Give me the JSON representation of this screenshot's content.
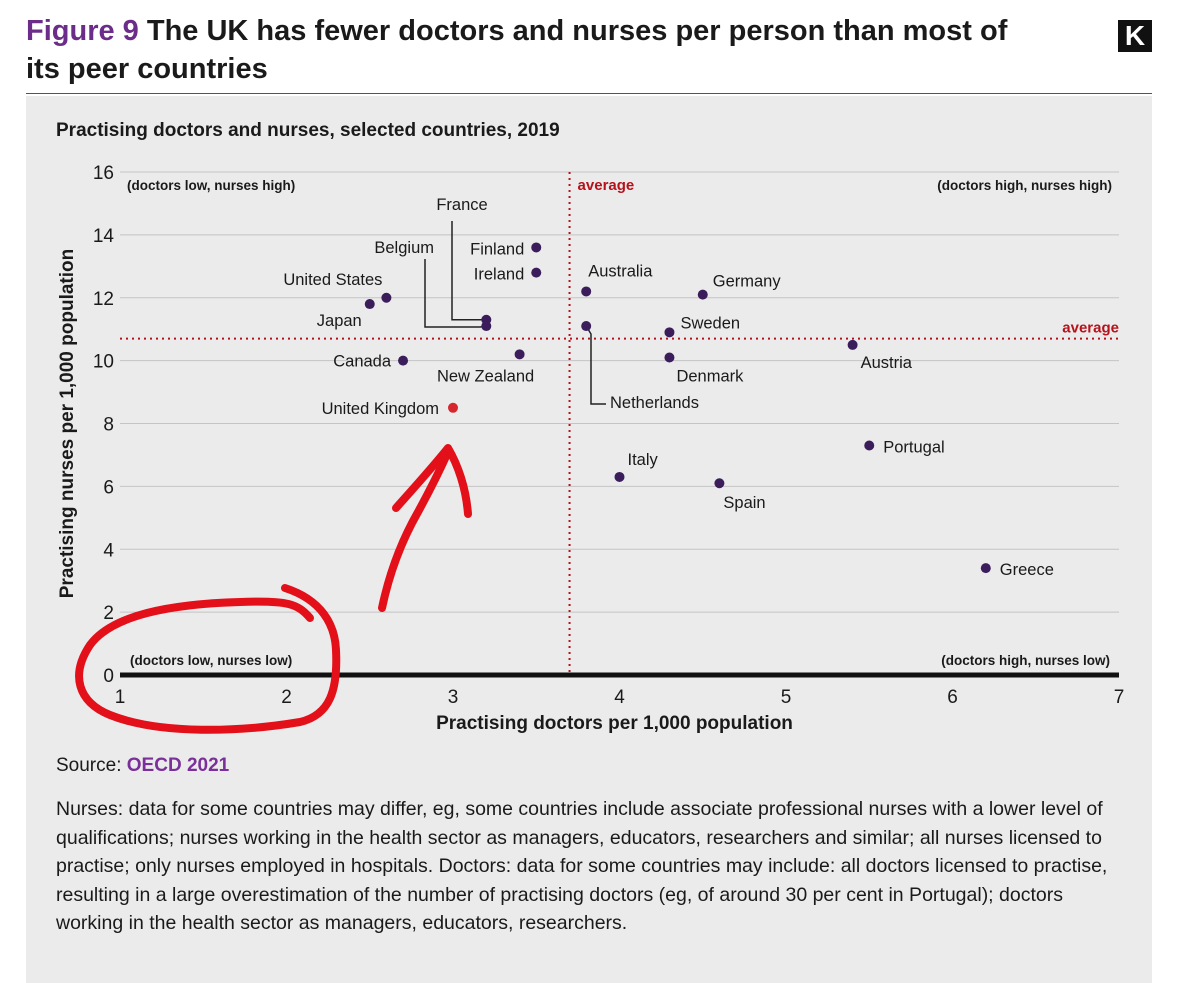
{
  "figure": {
    "number": "Figure 9",
    "title": "The UK has fewer doctors and nurses per person than most of its peer countries",
    "logo_letter": "K"
  },
  "chart_data": {
    "type": "scatter",
    "title": "Practising doctors and nurses, selected countries, 2019",
    "xlabel": "Practising doctors per 1,000 population",
    "ylabel": "Practising nurses per 1,000 population",
    "xlim": [
      1,
      7
    ],
    "ylim": [
      0,
      16
    ],
    "xticks": [
      1,
      2,
      3,
      4,
      5,
      6,
      7
    ],
    "yticks": [
      0,
      2,
      4,
      6,
      8,
      10,
      12,
      14,
      16
    ],
    "grid": true,
    "average": {
      "x": 3.7,
      "y": 10.7,
      "label_x": "average",
      "label_y": "average"
    },
    "quadrants": {
      "top_left": "(doctors low, nurses high)",
      "top_right": "(doctors high, nurses high)",
      "bottom_left": "(doctors low, nurses low)",
      "bottom_right": "(doctors high, nurses low)"
    },
    "points": [
      {
        "name": "United States",
        "x": 2.6,
        "y": 12.0
      },
      {
        "name": "Japan",
        "x": 2.5,
        "y": 11.8
      },
      {
        "name": "Belgium",
        "x": 3.2,
        "y": 11.1
      },
      {
        "name": "France",
        "x": 3.2,
        "y": 11.3
      },
      {
        "name": "Finland",
        "x": 3.5,
        "y": 13.6
      },
      {
        "name": "Ireland",
        "x": 3.5,
        "y": 12.8
      },
      {
        "name": "Canada",
        "x": 2.7,
        "y": 10.0
      },
      {
        "name": "New Zealand",
        "x": 3.4,
        "y": 10.2
      },
      {
        "name": "United Kingdom",
        "x": 3.0,
        "y": 8.5,
        "highlight": true
      },
      {
        "name": "Australia",
        "x": 3.8,
        "y": 12.2
      },
      {
        "name": "Germany",
        "x": 4.5,
        "y": 12.1
      },
      {
        "name": "Sweden",
        "x": 4.3,
        "y": 10.9
      },
      {
        "name": "Denmark",
        "x": 4.3,
        "y": 10.1
      },
      {
        "name": "Netherlands",
        "x": 3.8,
        "y": 11.1
      },
      {
        "name": "Austria",
        "x": 5.4,
        "y": 10.5
      },
      {
        "name": "Portugal",
        "x": 5.5,
        "y": 7.3
      },
      {
        "name": "Italy",
        "x": 4.0,
        "y": 6.3
      },
      {
        "name": "Spain",
        "x": 4.6,
        "y": 6.1
      },
      {
        "name": "Greece",
        "x": 6.2,
        "y": 3.4
      }
    ],
    "colors": {
      "point": "#3b1d5c",
      "highlight": "#d7262e",
      "average": "#b5121b",
      "annotation": "#e3101a"
    }
  },
  "source": {
    "label": "Source:",
    "link": "OECD 2021"
  },
  "note": "Nurses: data for some countries may differ, eg, some countries include associate professional nurses with a lower level of qualifications; nurses working in the health sector as managers, educators, researchers and similar; all nurses licensed to practise; only nurses employed in hospitals. Doctors: data for some countries may include: all doctors licensed to practise, resulting in a large overestimation of the number of practising doctors (eg, of around 30 per cent in Portugal); doctors working in the health sector as managers, educators, researchers."
}
